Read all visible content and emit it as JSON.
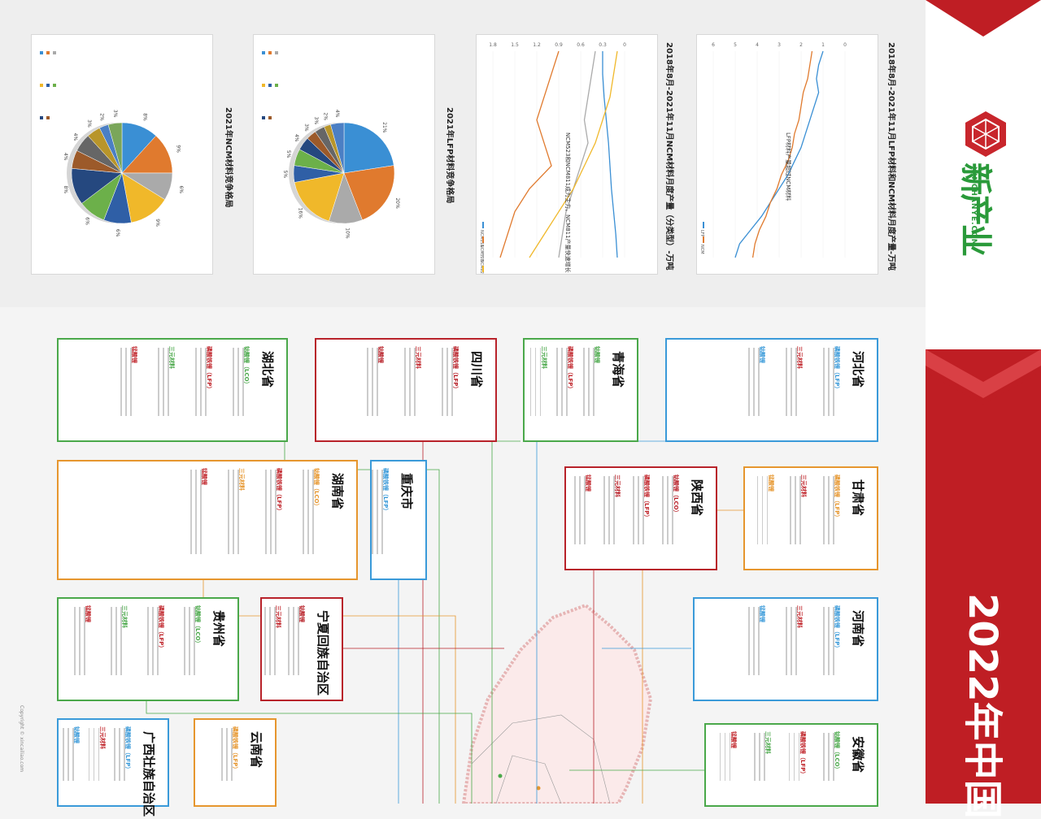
{
  "header": {
    "brand_cn": "新产业",
    "brand_en": "XINCHANYE.COM",
    "headline": "2022年中国"
  },
  "charts": {
    "lfp_ncm_title": "2018年8月-2021年11月LFP材料和NCM材料月度产量-万吨",
    "lfp_ncm_annotation": "LFP材料产量超过NCM材料",
    "ncm_type_title": "2018年8月-2021年11月NCM材料月度产量（分类型）-万吨",
    "ncm_type_annotation": "NCM523和NCM811成为主力，NCM811产量快速增长",
    "lfp_comp_title": "2021年LFP材料竞争格局",
    "ncm_comp_title": "2021年NCM材料竞争格局",
    "lfp_legend": [
      "LFP",
      "NCM"
    ],
    "ncm_legend": [
      "NCM111",
      "NCM523",
      "NCM622",
      "NCM811"
    ],
    "lfp_pie_labels": [
      "21%",
      "20%",
      "10%",
      "16%",
      "5%",
      "5%",
      "4%",
      "3%",
      "3%",
      "2%",
      "4%"
    ],
    "ncm_pie_labels": [
      "8%",
      "9%",
      "6%",
      "9%",
      "6%",
      "6%",
      "8%",
      "4%",
      "4%",
      "3%",
      "2%",
      "3%"
    ]
  },
  "chart_data": [
    {
      "type": "line",
      "title": "2018年8月-2021年11月LFP材料和NCM材料月度产量-万吨",
      "series": [
        {
          "name": "LFP",
          "values": [
            1.0,
            1.2,
            1.3,
            1.2,
            1.4,
            1.6,
            1.8,
            2.0,
            2.3,
            2.6,
            3.0,
            3.4,
            3.8,
            4.3,
            4.8,
            5.0
          ]
        },
        {
          "name": "NCM",
          "values": [
            1.5,
            1.6,
            1.7,
            1.9,
            2.0,
            2.1,
            2.3,
            2.4,
            2.6,
            2.9,
            3.1,
            3.4,
            3.6,
            3.9,
            4.1,
            4.2
          ]
        }
      ],
      "ylim": [
        0,
        6
      ]
    },
    {
      "type": "line",
      "title": "2018年8月-2021年11月NCM材料月度产量（分类型）-万吨",
      "series": [
        {
          "name": "NCM111",
          "values": [
            0.3,
            0.3,
            0.28,
            0.25,
            0.22,
            0.2,
            0.18,
            0.15,
            0.12,
            0.1
          ]
        },
        {
          "name": "NCM523",
          "values": [
            0.9,
            1.0,
            1.1,
            1.2,
            1.1,
            1.0,
            1.3,
            1.5,
            1.6,
            1.7
          ]
        },
        {
          "name": "NCM622",
          "values": [
            0.4,
            0.45,
            0.5,
            0.55,
            0.5,
            0.6,
            0.7,
            0.8,
            0.85,
            0.9
          ]
        },
        {
          "name": "NCM811",
          "values": [
            0.1,
            0.15,
            0.2,
            0.3,
            0.4,
            0.55,
            0.7,
            0.9,
            1.1,
            1.3
          ]
        }
      ],
      "ylim": [
        0,
        1.8
      ]
    },
    {
      "type": "pie",
      "title": "2021年LFP材料竞争格局",
      "values": [
        21,
        20,
        10,
        16,
        5,
        5,
        4,
        3,
        3,
        2,
        4
      ]
    },
    {
      "type": "pie",
      "title": "2021年NCM材料竞争格局",
      "values": [
        8,
        9,
        6,
        9,
        6,
        6,
        8,
        4,
        4,
        3,
        2,
        3
      ]
    }
  ],
  "provinces": [
    {
      "name": "河北省",
      "color": "#3a9ad9",
      "cats": [
        "磷酸铁锂（LFP）",
        "三元材料",
        "钴酸锂"
      ]
    },
    {
      "name": "青海省",
      "color": "#4aa84a",
      "cats": [
        "钴酸锂",
        "磷酸铁锂（LFP）",
        "三元材料"
      ]
    },
    {
      "name": "四川省",
      "color": "#b8222a",
      "cats": [
        "磷酸铁锂（LFP）",
        "三元材料",
        "钴酸锂"
      ]
    },
    {
      "name": "湖北省",
      "color": "#4aa84a",
      "cats": [
        "钴酸锂（LCO）",
        "磷酸铁锂（LFP）",
        "三元材料",
        "锰酸锂"
      ]
    },
    {
      "name": "甘肃省",
      "color": "#e6962e",
      "cats": [
        "磷酸铁锂（LFP）",
        "三元材料",
        "锰酸锂"
      ]
    },
    {
      "name": "陕西省",
      "color": "#b8222a",
      "cats": [
        "钴酸锂（LCO）",
        "磷酸铁锂（LFP）",
        "三元材料",
        "锰酸锂"
      ]
    },
    {
      "name": "重庆市",
      "color": "#3a9ad9",
      "cats": [
        "磷酸铁锂（LFP）"
      ]
    },
    {
      "name": "湖南省",
      "color": "#e6962e",
      "cats": [
        "钴酸锂（LCO）",
        "磷酸铁锂（LFP）",
        "三元材料",
        "锰酸锂"
      ]
    },
    {
      "name": "河南省",
      "color": "#3a9ad9",
      "cats": [
        "磷酸铁锂（LFP）",
        "三元材料",
        "锰酸锂"
      ]
    },
    {
      "name": "宁夏回族自治区",
      "color": "#b8222a",
      "cats": [
        "钴酸锂",
        "三元材料"
      ]
    },
    {
      "name": "贵州省",
      "color": "#4aa84a",
      "cats": [
        "钴酸锂（LCO）",
        "磷酸铁锂（LFP）",
        "三元材料",
        "锰酸锂"
      ]
    },
    {
      "name": "安徽省",
      "color": "#4aa84a",
      "cats": [
        "钴酸锂（LCO）",
        "磷酸铁锂（LFP）",
        "三元材料",
        "锰酸锂"
      ]
    },
    {
      "name": "云南省",
      "color": "#e6962e",
      "cats": [
        "磷酸铁锂（LFP）"
      ]
    },
    {
      "name": "广西壮族自治区",
      "color": "#3a9ad9",
      "cats": [
        "磷酸铁锂（LFP）",
        "三元材料",
        "钴酸锂"
      ]
    }
  ],
  "footer": {
    "copyright": "Copyright © xincailiao.com"
  }
}
